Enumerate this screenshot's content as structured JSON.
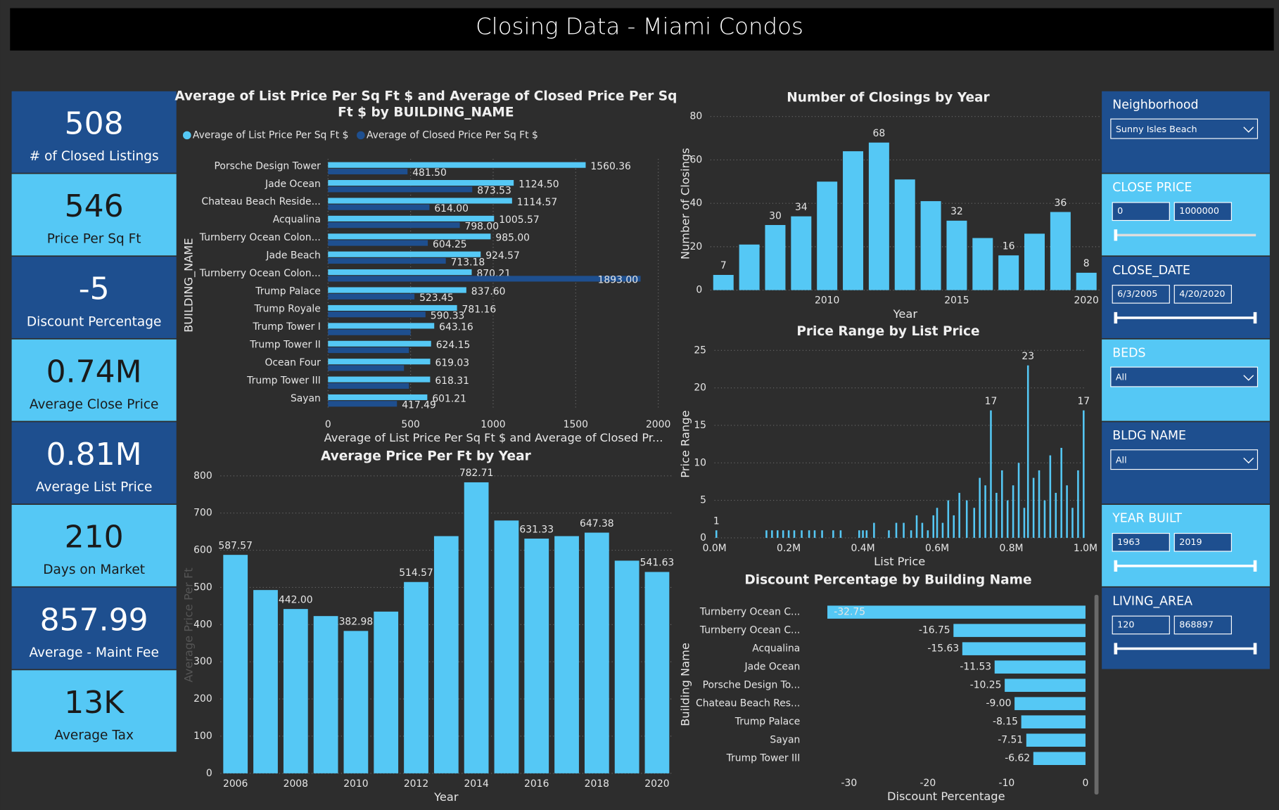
{
  "header": {
    "title": "Closing Data - Miami Condos"
  },
  "kpis": [
    {
      "value": "508",
      "label": "# of Closed Listings"
    },
    {
      "value": "546",
      "label": "Price Per Sq Ft"
    },
    {
      "value": "-5",
      "label": "Discount Percentage"
    },
    {
      "value": "0.74M",
      "label": "Average Close Price"
    },
    {
      "value": "0.81M",
      "label": "Average List Price"
    },
    {
      "value": "210",
      "label": "Days on Market"
    },
    {
      "value": "857.99",
      "label": "Average - Maint Fee"
    },
    {
      "value": "13K",
      "label": "Average Tax"
    }
  ],
  "slicers": [
    {
      "label": "Neighborhood",
      "control": "dropdown",
      "value": "Sunny Isles Beach"
    },
    {
      "label": "CLOSE PRICE",
      "control": "range",
      "from": "0",
      "to": "1000000"
    },
    {
      "label": "CLOSE_DATE",
      "control": "range",
      "from": "6/3/2005",
      "to": "4/20/2020"
    },
    {
      "label": "BEDS",
      "control": "dropdown",
      "value": "All"
    },
    {
      "label": "BLDG NAME",
      "control": "dropdown",
      "value": "All"
    },
    {
      "label": "YEAR BUILT",
      "control": "range",
      "from": "1963",
      "to": "2019"
    },
    {
      "label": "LIVING_AREA",
      "control": "range",
      "from": "120",
      "to": "868897"
    }
  ],
  "chart_data": [
    {
      "type": "bar",
      "orientation": "horizontal",
      "title": "Average of List Price Per Sq Ft $ and Average of Closed Price Per Sq Ft $ by BUILDING_NAME",
      "x_label": "Average of List Price Per Sq Ft $ and Average of Closed Pr...",
      "y_label": "BUILDING_NAME",
      "categories": [
        "Porsche Design Tower",
        "Jade Ocean",
        "Chateau Beach Reside...",
        "Acqualina",
        "Turnberry Ocean Colon...",
        "Jade Beach",
        "Turnberry Ocean Colon...",
        "Trump Palace",
        "Trump Royale",
        "Trump Tower I",
        "Trump Tower II",
        "Ocean Four",
        "Trump Tower III",
        "Sayan"
      ],
      "series": [
        {
          "name": "Average of List Price Per Sq Ft $",
          "color": "#55c8f5",
          "values": [
            1560.36,
            1124.5,
            1114.57,
            1005.57,
            985,
            924.57,
            870.21,
            837.6,
            781.16,
            643.16,
            624.15,
            619.03,
            618.31,
            601.21
          ],
          "value_labels": [
            "1560.36",
            "1124.50",
            "1114.57",
            "1005.57",
            "985.00",
            "924.57",
            "870.21",
            "837.60",
            "781.16",
            "643.16",
            "624.15",
            "619.03",
            "618.31",
            "601.21"
          ]
        },
        {
          "name": "Average of Closed Price Per Sq Ft $",
          "color": "#1e4f8f",
          "values": [
            481.5,
            873.53,
            614,
            798,
            604.25,
            713.18,
            1893,
            523.45,
            590.33,
            500,
            490,
            460,
            490,
            417.49
          ],
          "value_labels": [
            "481.50",
            "873.53",
            "614.00",
            "798.00",
            "604.25",
            "713.18",
            "1893.00",
            "523.45",
            "590.33",
            null,
            null,
            null,
            null,
            "417.49"
          ]
        }
      ],
      "xlim": [
        0,
        2000
      ],
      "xticks": [
        0,
        500,
        1000,
        1500,
        2000
      ],
      "grid": true,
      "legend": "top-left"
    },
    {
      "type": "bar",
      "title": "Number of Closings by Year",
      "x_label": "Year",
      "y_label": "Number of Closings",
      "x": [
        2006,
        2007,
        2008,
        2009,
        2010,
        2011,
        2012,
        2013,
        2014,
        2015,
        2016,
        2017,
        2018,
        2019,
        2020
      ],
      "values": [
        7,
        21,
        30,
        34,
        50,
        64,
        68,
        51,
        41,
        32,
        24,
        16,
        26,
        36,
        8
      ],
      "value_labels": [
        "7",
        null,
        "30",
        "34",
        null,
        null,
        "68",
        null,
        null,
        "32",
        null,
        "16",
        null,
        "36",
        "8"
      ],
      "color": "#55c8f5",
      "xlim": [
        2005.5,
        2020.5
      ],
      "xticks": [
        2010,
        2015,
        2020
      ],
      "ylim": [
        0,
        80
      ],
      "yticks": [
        0,
        20,
        40,
        60,
        80
      ],
      "grid": true
    },
    {
      "type": "bar",
      "title": "Price Range by List Price",
      "x_label": "List Price",
      "y_label": "Price Range",
      "x": [
        5000,
        140000,
        155000,
        170000,
        185000,
        200000,
        215000,
        235000,
        255000,
        270000,
        290000,
        320000,
        340000,
        390000,
        400000,
        410000,
        430000,
        470000,
        490000,
        510000,
        530000,
        545000,
        560000,
        575000,
        590000,
        600000,
        615000,
        630000,
        645000,
        660000,
        680000,
        700000,
        715000,
        730000,
        745000,
        760000,
        775000,
        790000,
        805000,
        820000,
        835000,
        845000,
        860000,
        875000,
        890000,
        905000,
        920000,
        935000,
        950000,
        965000,
        980000,
        995000
      ],
      "values": [
        1,
        1,
        1,
        1,
        1,
        1,
        1,
        1,
        1,
        1,
        1,
        1,
        1,
        1,
        1,
        1,
        2,
        1,
        2,
        2,
        1,
        3,
        2,
        1,
        3,
        4,
        2,
        5,
        3,
        6,
        5,
        4,
        8,
        7,
        17,
        6,
        9,
        5,
        7,
        10,
        4,
        23,
        8,
        9,
        5,
        11,
        6,
        12,
        7,
        4,
        9,
        17
      ],
      "value_labels": [
        "1",
        null,
        null,
        null,
        null,
        null,
        null,
        null,
        null,
        null,
        null,
        null,
        null,
        null,
        null,
        null,
        null,
        null,
        null,
        null,
        null,
        null,
        null,
        null,
        null,
        null,
        null,
        null,
        null,
        null,
        null,
        null,
        null,
        null,
        "17",
        null,
        null,
        null,
        null,
        null,
        null,
        "23",
        null,
        null,
        null,
        null,
        null,
        null,
        null,
        null,
        null,
        "17"
      ],
      "color": "#55c8f5",
      "xlim": [
        0,
        1000000
      ],
      "xticks": [
        {
          "value": 0,
          "label": "0.0M"
        },
        {
          "value": 200000,
          "label": "0.2M"
        },
        {
          "value": 400000,
          "label": "0.4M"
        },
        {
          "value": 600000,
          "label": "0.6M"
        },
        {
          "value": 800000,
          "label": "0.8M"
        },
        {
          "value": 1000000,
          "label": "1.0M"
        }
      ],
      "ylim": [
        0,
        25
      ],
      "yticks": [
        0,
        5,
        10,
        15,
        20,
        25
      ],
      "grid": true
    },
    {
      "type": "bar",
      "orientation": "horizontal",
      "title": "Discount Percentage by Building Name",
      "x_label": "Discount Percentage",
      "y_label": "Building Name",
      "categories": [
        "Turnberry Ocean C...",
        "Turnberry Ocean C...",
        "Acqualina",
        "Jade Ocean",
        "Porsche Design To...",
        "Chateau Beach Res...",
        "Trump Palace",
        "Sayan",
        "Trump Tower III"
      ],
      "values": [
        -32.75,
        -16.75,
        -15.63,
        -11.53,
        -10.25,
        -9,
        -8.15,
        -7.51,
        -6.62
      ],
      "value_labels": [
        "-32.75",
        "-16.75",
        "-15.63",
        "-11.53",
        "-10.25",
        "-9.00",
        "-8.15",
        "-7.51",
        "-6.62"
      ],
      "color": "#55c8f5",
      "xlim": [
        -33,
        0
      ],
      "xticks": [
        -30,
        -20,
        -10,
        0
      ],
      "grid": false
    },
    {
      "type": "bar",
      "title": "Average Price Per Ft by Year",
      "x_label": "Year",
      "y_label": "Average Price Per Ft",
      "x": [
        2006,
        2007,
        2008,
        2009,
        2010,
        2011,
        2012,
        2013,
        2014,
        2015,
        2016,
        2017,
        2018,
        2019,
        2020
      ],
      "values": [
        587.57,
        493,
        442,
        423,
        382.98,
        435,
        514.57,
        638,
        782.71,
        680,
        631.33,
        638,
        647.38,
        572,
        541.63
      ],
      "value_labels": [
        "587.57",
        null,
        "442.00",
        null,
        "382.98",
        null,
        "514.57",
        null,
        "782.71",
        null,
        "631.33",
        null,
        "647.38",
        null,
        "541.63"
      ],
      "color": "#55c8f5",
      "xlim": [
        2005.5,
        2020.5
      ],
      "xticks": [
        2006,
        2008,
        2010,
        2012,
        2014,
        2016,
        2018,
        2020
      ],
      "ylim": [
        0,
        800
      ],
      "yticks": [
        0,
        100,
        200,
        300,
        400,
        500,
        600,
        700,
        800
      ],
      "grid": true
    }
  ]
}
